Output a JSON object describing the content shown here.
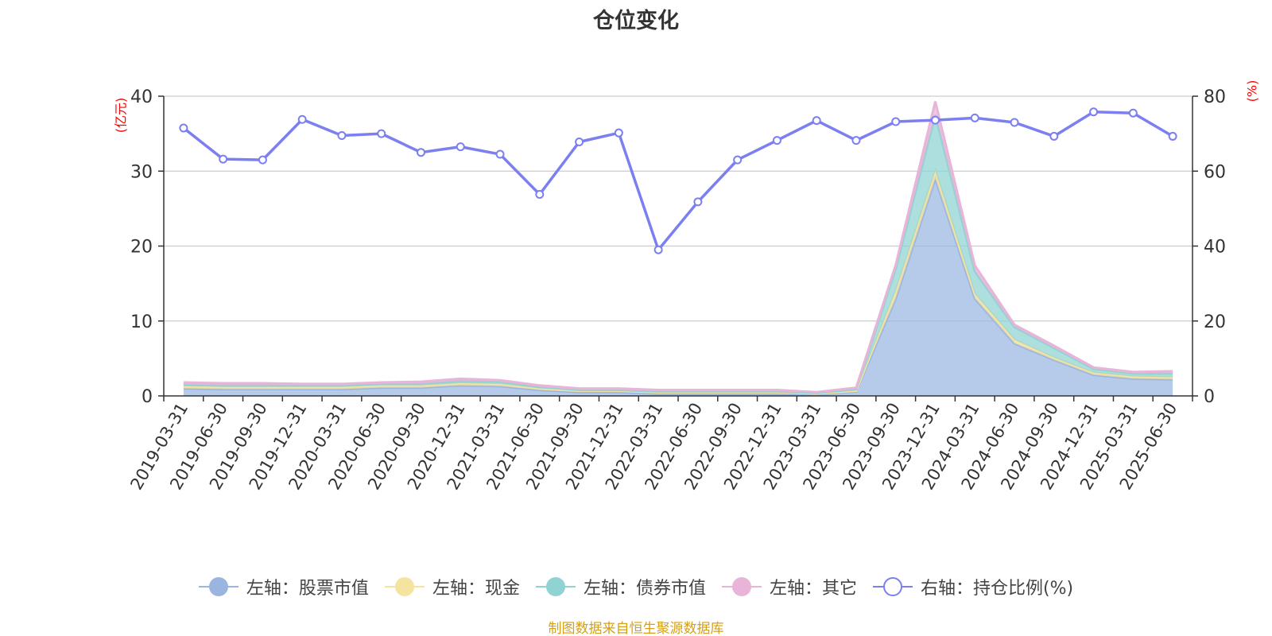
{
  "title": "仓位变化",
  "footer_text": "制图数据来自恒生聚源数据库",
  "chart_data": {
    "type": "area",
    "title": "仓位变化",
    "left_axis_unit": "(亿元)",
    "right_axis_unit": "(%)",
    "ylim_left": [
      0,
      40
    ],
    "ylim_right": [
      0,
      80
    ],
    "yticks_left": [
      0,
      10,
      20,
      30,
      40
    ],
    "yticks_right": [
      0,
      20,
      40,
      60,
      80
    ],
    "grid": true,
    "legend_position": "bottom",
    "categories": [
      "2019-03-31",
      "2019-06-30",
      "2019-09-30",
      "2019-12-31",
      "2020-03-31",
      "2020-06-30",
      "2020-09-30",
      "2020-12-31",
      "2021-03-31",
      "2021-06-30",
      "2021-09-30",
      "2021-12-31",
      "2022-03-31",
      "2022-06-30",
      "2022-09-30",
      "2022-12-31",
      "2023-03-31",
      "2023-06-30",
      "2023-09-30",
      "2023-12-31",
      "2024-03-31",
      "2024-06-30",
      "2024-09-30",
      "2024-12-31",
      "2025-03-31",
      "2025-06-30"
    ],
    "series": [
      {
        "name": "左轴：股票市值",
        "axis": "left",
        "stacked": true,
        "color": "#9ab5e0",
        "values": [
          1.0,
          0.9,
          0.9,
          0.9,
          0.9,
          1.1,
          1.1,
          1.4,
          1.3,
          0.8,
          0.5,
          0.5,
          0.3,
          0.3,
          0.3,
          0.3,
          0.2,
          0.6,
          13.0,
          29.0,
          13.0,
          7.0,
          4.8,
          2.8,
          2.3,
          2.2
        ]
      },
      {
        "name": "左轴：现金",
        "axis": "left",
        "stacked": true,
        "color": "#f5e3a0",
        "values": [
          0.3,
          0.3,
          0.3,
          0.3,
          0.3,
          0.3,
          0.3,
          0.3,
          0.3,
          0.2,
          0.2,
          0.2,
          0.2,
          0.2,
          0.2,
          0.2,
          0.1,
          0.1,
          1.0,
          1.0,
          0.6,
          0.5,
          0.3,
          0.3,
          0.3,
          0.3
        ]
      },
      {
        "name": "左轴：债券市值",
        "axis": "left",
        "stacked": true,
        "color": "#8fd3d3",
        "values": [
          0.2,
          0.2,
          0.2,
          0.2,
          0.2,
          0.2,
          0.2,
          0.3,
          0.3,
          0.2,
          0.1,
          0.1,
          0.1,
          0.1,
          0.1,
          0.1,
          0.1,
          0.2,
          3.0,
          7.5,
          3.0,
          1.7,
          1.3,
          0.5,
          0.4,
          0.5
        ]
      },
      {
        "name": "左轴：其它",
        "axis": "left",
        "stacked": true,
        "color": "#e8b4d8",
        "values": [
          0.3,
          0.3,
          0.3,
          0.2,
          0.2,
          0.2,
          0.3,
          0.3,
          0.2,
          0.2,
          0.2,
          0.2,
          0.2,
          0.2,
          0.2,
          0.2,
          0.1,
          0.2,
          0.5,
          1.8,
          0.8,
          0.3,
          0.3,
          0.2,
          0.2,
          0.3
        ]
      },
      {
        "name": "右轴：持仓比例(%)",
        "axis": "right",
        "stacked": false,
        "color": "#7b7ff0",
        "values": [
          71.5,
          63.2,
          63.0,
          73.8,
          69.5,
          70.0,
          65.0,
          66.5,
          64.5,
          53.8,
          67.8,
          70.2,
          39.0,
          51.8,
          63.0,
          68.2,
          73.5,
          68.2,
          73.2,
          73.6,
          74.2,
          73.0,
          69.3,
          75.8,
          75.5,
          69.3
        ]
      }
    ]
  }
}
